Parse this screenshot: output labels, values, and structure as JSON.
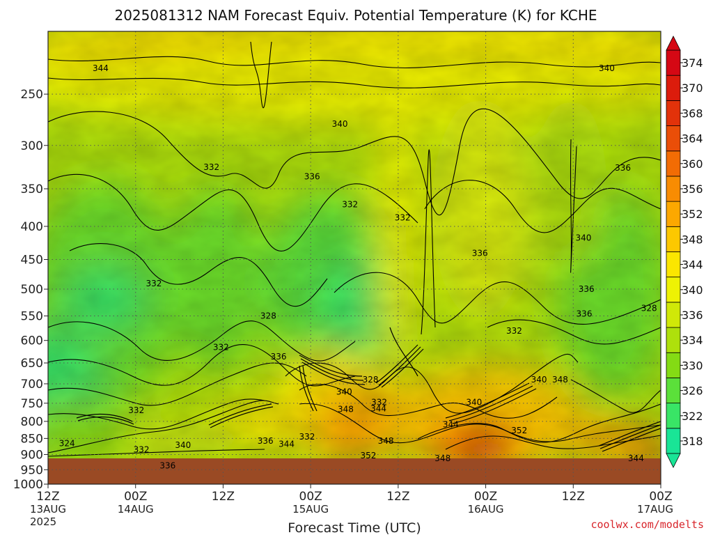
{
  "chart_data": {
    "type": "heatmap",
    "title": "2025081312 NAM Forecast Equiv. Potential Temperature (K) for KCHE",
    "xlabel": "Forecast Time (UTC)",
    "ylabel": "",
    "watermark": "coolwx.com/modelts",
    "y_scale": "log-pressure",
    "y_direction": "decreasing upward",
    "ylim": [
      1000,
      200
    ],
    "y_ticks": [
      250,
      300,
      350,
      400,
      450,
      500,
      550,
      600,
      650,
      700,
      750,
      800,
      850,
      900,
      950,
      1000
    ],
    "x_ticks": [
      {
        "line1": "12Z",
        "line2": "13AUG",
        "line3": "2025"
      },
      {
        "line1": "00Z",
        "line2": "14AUG",
        "line3": ""
      },
      {
        "line1": "12Z",
        "line2": "",
        "line3": ""
      },
      {
        "line1": "00Z",
        "line2": "15AUG",
        "line3": ""
      },
      {
        "line1": "12Z",
        "line2": "",
        "line3": ""
      },
      {
        "line1": "00Z",
        "line2": "16AUG",
        "line3": ""
      },
      {
        "line1": "12Z",
        "line2": "",
        "line3": ""
      },
      {
        "line1": "00Z",
        "line2": "17AUG",
        "line3": ""
      }
    ],
    "forecast_hours": [
      0,
      12,
      24,
      36,
      48,
      60,
      72,
      84
    ],
    "grid": true,
    "colorbar": {
      "levels": [
        318,
        322,
        326,
        330,
        334,
        336,
        340,
        344,
        348,
        352,
        356,
        360,
        364,
        368,
        370,
        374
      ],
      "colors": [
        "#19e596",
        "#39e566",
        "#5be03a",
        "#84db14",
        "#aee00c",
        "#d0e808",
        "#eef204",
        "#fbe600",
        "#fcc800",
        "#fca800",
        "#f88c02",
        "#f26c04",
        "#ea4e08",
        "#e2320a",
        "#dc1c0c",
        "#d50814"
      ]
    },
    "ground_fill_color": "#9a4a24",
    "grid_color": "#555555",
    "contour_labels": [
      {
        "value": "344",
        "hour": 7.2,
        "p": 228
      },
      {
        "value": "340",
        "hour": 76.6,
        "p": 228
      },
      {
        "value": "340",
        "hour": 40,
        "p": 278
      },
      {
        "value": "336",
        "hour": 36.2,
        "p": 335
      },
      {
        "value": "336",
        "hour": 78.8,
        "p": 325
      },
      {
        "value": "332",
        "hour": 22.4,
        "p": 324
      },
      {
        "value": "332",
        "hour": 41.4,
        "p": 370
      },
      {
        "value": "332",
        "hour": 48.6,
        "p": 388
      },
      {
        "value": "340",
        "hour": 73.4,
        "p": 417
      },
      {
        "value": "336",
        "hour": 59.2,
        "p": 440
      },
      {
        "value": "332",
        "hour": 14.5,
        "p": 490
      },
      {
        "value": "336",
        "hour": 73.8,
        "p": 500
      },
      {
        "value": "328",
        "hour": 30.2,
        "p": 550
      },
      {
        "value": "336",
        "hour": 73.5,
        "p": 546
      },
      {
        "value": "328",
        "hour": 82.4,
        "p": 535
      },
      {
        "value": "332",
        "hour": 63.9,
        "p": 580
      },
      {
        "value": "332",
        "hour": 23.7,
        "p": 615
      },
      {
        "value": "336",
        "hour": 31.6,
        "p": 636
      },
      {
        "value": "340",
        "hour": 67.3,
        "p": 690
      },
      {
        "value": "348",
        "hour": 70.2,
        "p": 690
      },
      {
        "value": "328",
        "hour": 44.2,
        "p": 690
      },
      {
        "value": "340",
        "hour": 40.6,
        "p": 720
      },
      {
        "value": "332",
        "hour": 45.4,
        "p": 748
      },
      {
        "value": "344",
        "hour": 45.3,
        "p": 764
      },
      {
        "value": "340",
        "hour": 58.4,
        "p": 748
      },
      {
        "value": "348",
        "hour": 40.8,
        "p": 766
      },
      {
        "value": "332",
        "hour": 12.1,
        "p": 769
      },
      {
        "value": "344",
        "hour": 55.2,
        "p": 809
      },
      {
        "value": "352",
        "hour": 64.6,
        "p": 826
      },
      {
        "value": "336",
        "hour": 29.8,
        "p": 858
      },
      {
        "value": "344",
        "hour": 32.7,
        "p": 867
      },
      {
        "value": "332",
        "hour": 35.5,
        "p": 845
      },
      {
        "value": "348",
        "hour": 46.3,
        "p": 858
      },
      {
        "value": "324",
        "hour": 2.6,
        "p": 865
      },
      {
        "value": "332",
        "hour": 12.8,
        "p": 885
      },
      {
        "value": "340",
        "hour": 18.5,
        "p": 870
      },
      {
        "value": "352",
        "hour": 43.9,
        "p": 903
      },
      {
        "value": "348",
        "hour": 54.1,
        "p": 912
      },
      {
        "value": "344",
        "hour": 80.6,
        "p": 912
      },
      {
        "value": "336",
        "hour": 16.4,
        "p": 937
      }
    ]
  }
}
